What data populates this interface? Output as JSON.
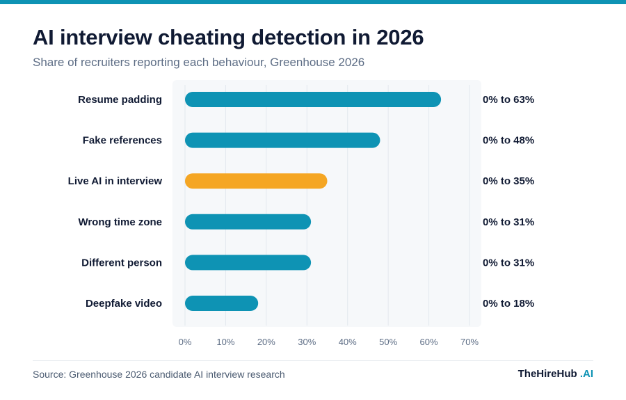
{
  "header": {
    "title": "AI interview cheating detection in 2026",
    "subtitle": "Share of recruiters reporting each behaviour, Greenhouse 2026"
  },
  "footer": {
    "source": "Source: Greenhouse 2026 candidate AI interview research",
    "brand_name": "TheHireHub",
    "brand_suffix": ".AI"
  },
  "colors": {
    "accent": "#0e93b4",
    "bar": "#0e93b4",
    "highlight_bar": "#f5a623",
    "label_text": "#101a33",
    "tick_text": "#5d6d85"
  },
  "chart_data": {
    "type": "bar",
    "orientation": "horizontal",
    "categories": [
      "Resume padding",
      "Fake references",
      "Live AI in interview",
      "Wrong time zone",
      "Different person",
      "Deepfake video"
    ],
    "values": [
      63,
      48,
      35,
      31,
      31,
      18
    ],
    "value_labels": [
      "0% to 63%",
      "0% to 48%",
      "0% to 35%",
      "0% to 31%",
      "0% to 31%",
      "0% to 18%"
    ],
    "highlight_index": 2,
    "xlim": [
      0,
      70
    ],
    "xticks": [
      0,
      10,
      20,
      30,
      40,
      50,
      60,
      70
    ],
    "tick_labels": [
      "0%",
      "10%",
      "20%",
      "30%",
      "40%",
      "50%",
      "60%",
      "70%"
    ],
    "grid": true,
    "legend": "none"
  }
}
